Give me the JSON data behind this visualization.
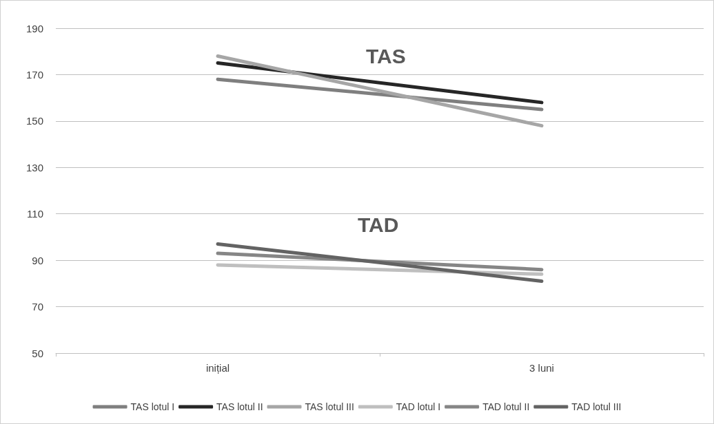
{
  "chart_data": {
    "type": "line",
    "categories": [
      "inițial",
      "3 luni"
    ],
    "series": [
      {
        "name": "TAS lotul I",
        "color": "#7f7f7f",
        "values": [
          168,
          155
        ]
      },
      {
        "name": "TAS lotul II",
        "color": "#262626",
        "values": [
          175,
          158
        ]
      },
      {
        "name": "TAS lotul III",
        "color": "#a6a6a6",
        "values": [
          178,
          148
        ]
      },
      {
        "name": "TAD lotul I",
        "color": "#bfbfbf",
        "values": [
          88,
          84
        ]
      },
      {
        "name": "TAD lotul II",
        "color": "#868686",
        "values": [
          93,
          86
        ]
      },
      {
        "name": "TAD lotul III",
        "color": "#636363",
        "values": [
          97,
          81
        ]
      }
    ],
    "ylim": [
      50,
      190
    ],
    "yticks": [
      50,
      70,
      90,
      110,
      130,
      150,
      170,
      190
    ],
    "grid": "y",
    "legend": "bottom",
    "marker": "none",
    "line_style": "solid",
    "annotations": [
      "TAS",
      "TAD"
    ]
  }
}
